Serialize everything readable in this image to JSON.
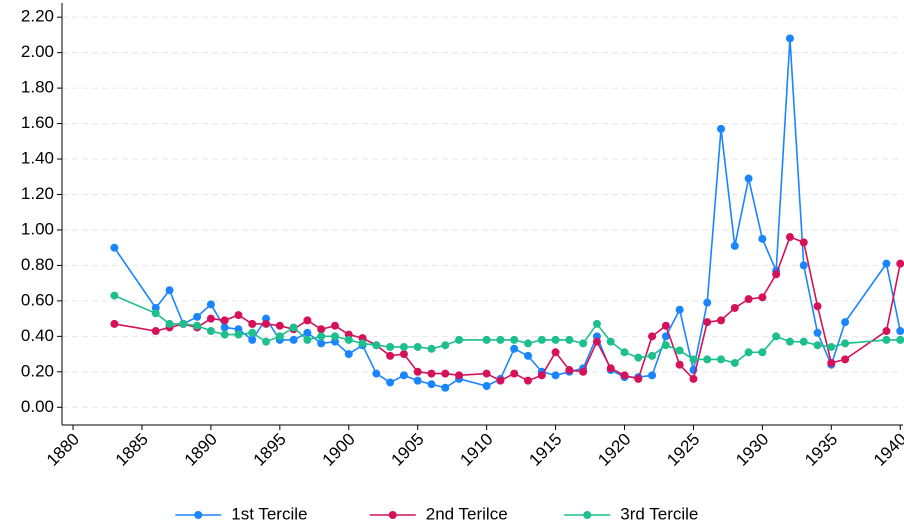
{
  "chart_data": {
    "type": "line",
    "x": [
      1883,
      1886,
      1887,
      1888,
      1889,
      1890,
      1891,
      1892,
      1893,
      1894,
      1895,
      1896,
      1897,
      1898,
      1899,
      1900,
      1901,
      1902,
      1903,
      1904,
      1905,
      1906,
      1907,
      1908,
      1910,
      1911,
      1912,
      1913,
      1914,
      1915,
      1916,
      1917,
      1918,
      1919,
      1920,
      1921,
      1922,
      1923,
      1924,
      1925,
      1926,
      1927,
      1928,
      1929,
      1930,
      1931,
      1932,
      1933,
      1934,
      1935,
      1936,
      1939,
      1940
    ],
    "series": [
      {
        "name": "1st Tercile",
        "color": "#1a85ff",
        "values": [
          0.9,
          0.56,
          0.66,
          0.47,
          0.51,
          0.58,
          0.45,
          0.44,
          0.38,
          0.5,
          0.38,
          0.38,
          0.42,
          0.36,
          0.37,
          0.3,
          0.35,
          0.19,
          0.14,
          0.18,
          0.15,
          0.13,
          0.11,
          0.16,
          0.12,
          0.16,
          0.33,
          0.29,
          0.2,
          0.18,
          0.2,
          0.22,
          0.4,
          0.21,
          0.17,
          0.17,
          0.18,
          0.4,
          0.55,
          0.21,
          0.59,
          1.57,
          0.91,
          1.29,
          0.95,
          0.77,
          2.08,
          0.8,
          0.42,
          0.24,
          0.48,
          0.81,
          0.43
        ]
      },
      {
        "name": "2nd Terilce",
        "color": "#d41159",
        "values": [
          0.47,
          0.43,
          0.45,
          0.47,
          0.45,
          0.5,
          0.49,
          0.52,
          0.47,
          0.47,
          0.46,
          0.44,
          0.49,
          0.44,
          0.46,
          0.41,
          0.39,
          0.35,
          0.29,
          0.3,
          0.2,
          0.19,
          0.19,
          0.18,
          0.19,
          0.15,
          0.19,
          0.15,
          0.18,
          0.31,
          0.21,
          0.2,
          0.37,
          0.22,
          0.18,
          0.16,
          0.4,
          0.46,
          0.24,
          0.16,
          0.48,
          0.49,
          0.56,
          0.61,
          0.62,
          0.75,
          0.96,
          0.93,
          0.57,
          0.25,
          0.27,
          0.43,
          0.81
        ]
      },
      {
        "name": "3rd Tercile",
        "color": "#1dbf8c",
        "values": [
          0.63,
          0.53,
          0.47,
          0.47,
          0.46,
          0.43,
          0.41,
          0.41,
          0.42,
          0.37,
          0.4,
          0.45,
          0.38,
          0.4,
          0.4,
          0.38,
          0.36,
          0.35,
          0.34,
          0.34,
          0.34,
          0.33,
          0.35,
          0.38,
          0.38,
          0.38,
          0.38,
          0.36,
          0.38,
          0.38,
          0.38,
          0.36,
          0.47,
          0.37,
          0.31,
          0.28,
          0.29,
          0.35,
          0.32,
          0.27,
          0.27,
          0.27,
          0.25,
          0.31,
          0.31,
          0.4,
          0.37,
          0.37,
          0.35,
          0.34,
          0.36,
          0.38,
          0.38
        ]
      }
    ],
    "xlim": [
      1879.2,
      1940.2
    ],
    "xticks": [
      1880,
      1885,
      1890,
      1895,
      1900,
      1905,
      1910,
      1915,
      1920,
      1925,
      1930,
      1935,
      1940
    ],
    "ylim": [
      -0.1,
      2.28
    ],
    "yticks": [
      {
        "value": 0,
        "label": "0.00"
      },
      {
        "value": 0.2,
        "label": "0.20"
      },
      {
        "value": 0.4,
        "label": "0.40"
      },
      {
        "value": 0.6,
        "label": "0.60"
      },
      {
        "value": 0.8,
        "label": "0.80"
      },
      {
        "value": 1,
        "label": "1.00"
      },
      {
        "value": 1.2,
        "label": "1.20"
      },
      {
        "value": 1.4,
        "label": "1.40"
      },
      {
        "value": 1.6,
        "label": "1.60"
      },
      {
        "value": 1.8,
        "label": "1.80"
      },
      {
        "value": 2,
        "label": "2.00"
      },
      {
        "value": 2.2,
        "label": "2.20"
      }
    ],
    "grid": true,
    "legend": "bottom"
  }
}
